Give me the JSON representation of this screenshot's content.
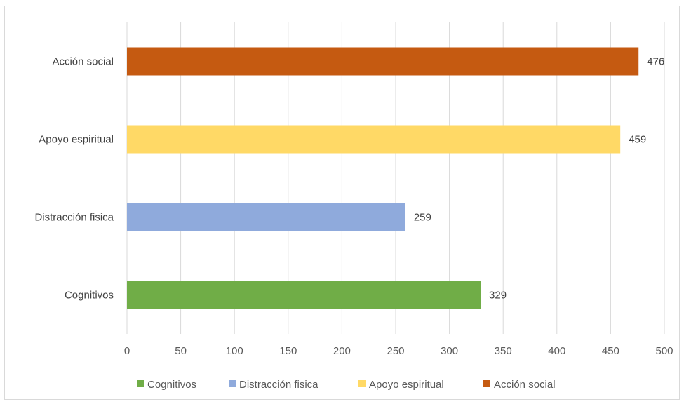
{
  "chart_data": {
    "type": "bar",
    "orientation": "horizontal",
    "categories": [
      "Cognitivos",
      "Distracción fisica",
      "Apoyo espiritual",
      "Acción social"
    ],
    "values": [
      329,
      259,
      459,
      476
    ],
    "colors": [
      "#70ad47",
      "#8faadc",
      "#ffd966",
      "#c55a11"
    ],
    "title": "",
    "xlabel": "",
    "ylabel": "",
    "xlim": [
      0,
      500
    ],
    "x_ticks": [
      "0",
      "50",
      "100",
      "150",
      "200",
      "250",
      "300",
      "350",
      "400",
      "450",
      "500"
    ],
    "grid": "vertical",
    "data_labels": [
      "329",
      "259",
      "459",
      "476"
    ],
    "legend": {
      "position": "bottom",
      "entries": [
        "Cognitivos",
        "Distracción fisica",
        "Apoyo espiritual",
        "Acción social"
      ]
    }
  }
}
